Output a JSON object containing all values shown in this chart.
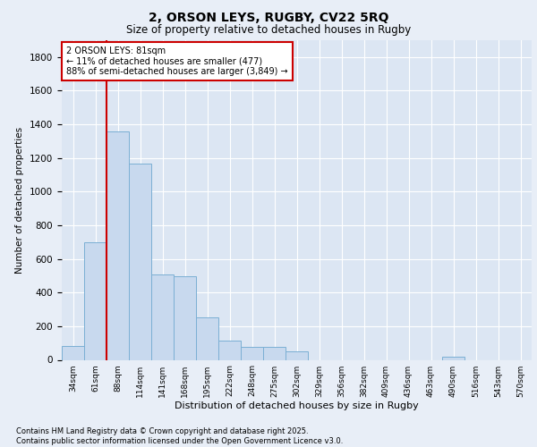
{
  "title1": "2, ORSON LEYS, RUGBY, CV22 5RQ",
  "title2": "Size of property relative to detached houses in Rugby",
  "xlabel": "Distribution of detached houses by size in Rugby",
  "ylabel": "Number of detached properties",
  "bar_color": "#c8d9ee",
  "bar_edgecolor": "#7bafd4",
  "vline_color": "#cc0000",
  "vline_x": 1.5,
  "categories": [
    "34sqm",
    "61sqm",
    "88sqm",
    "114sqm",
    "141sqm",
    "168sqm",
    "195sqm",
    "222sqm",
    "248sqm",
    "275sqm",
    "302sqm",
    "329sqm",
    "356sqm",
    "382sqm",
    "409sqm",
    "436sqm",
    "463sqm",
    "490sqm",
    "516sqm",
    "543sqm",
    "570sqm"
  ],
  "values": [
    85,
    700,
    1360,
    1165,
    505,
    495,
    255,
    115,
    75,
    75,
    48,
    0,
    0,
    0,
    0,
    0,
    0,
    18,
    0,
    0,
    0
  ],
  "ylim": [
    0,
    1900
  ],
  "yticks": [
    0,
    200,
    400,
    600,
    800,
    1000,
    1200,
    1400,
    1600,
    1800
  ],
  "annotation_title": "2 ORSON LEYS: 81sqm",
  "annotation_line1": "← 11% of detached houses are smaller (477)",
  "annotation_line2": "88% of semi-detached houses are larger (3,849) →",
  "footer1": "Contains HM Land Registry data © Crown copyright and database right 2025.",
  "footer2": "Contains public sector information licensed under the Open Government Licence v3.0.",
  "bg_color": "#e8eef7",
  "plot_bg_color": "#dce6f3"
}
